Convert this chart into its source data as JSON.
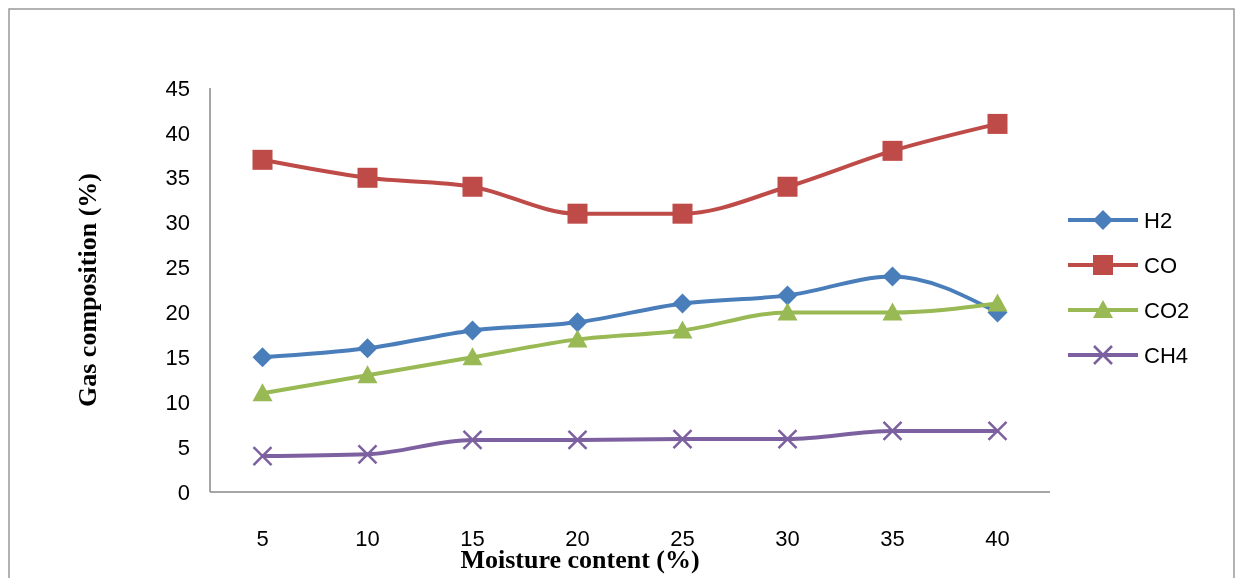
{
  "chart_data": {
    "type": "line",
    "xlabel": "Moisture content (%)",
    "ylabel": "Gas composition (%)",
    "categories": [
      "5",
      "10",
      "15",
      "20",
      "25",
      "30",
      "35",
      "40"
    ],
    "ylim": [
      0,
      45
    ],
    "yticks": [
      0,
      5,
      10,
      15,
      20,
      25,
      30,
      35,
      40,
      45
    ],
    "grid": false,
    "legend": "right",
    "line_style": "solid",
    "series": [
      {
        "name": "H2",
        "color": "#4a7ebb",
        "marker": "diamond",
        "values": [
          15,
          16,
          18,
          18.9,
          21,
          21.9,
          24,
          20
        ]
      },
      {
        "name": "CO",
        "color": "#be4b48",
        "marker": "square",
        "values": [
          37,
          35,
          34,
          31,
          31,
          34,
          38,
          41
        ]
      },
      {
        "name": "CO2",
        "color": "#98b954",
        "marker": "triangle",
        "values": [
          11,
          13,
          15,
          17,
          18,
          20,
          20,
          21
        ]
      },
      {
        "name": "CH4",
        "color": "#7d60a0",
        "marker": "cross",
        "values": [
          4,
          4.2,
          5.8,
          5.8,
          5.9,
          5.9,
          6.8,
          6.8
        ]
      }
    ]
  }
}
